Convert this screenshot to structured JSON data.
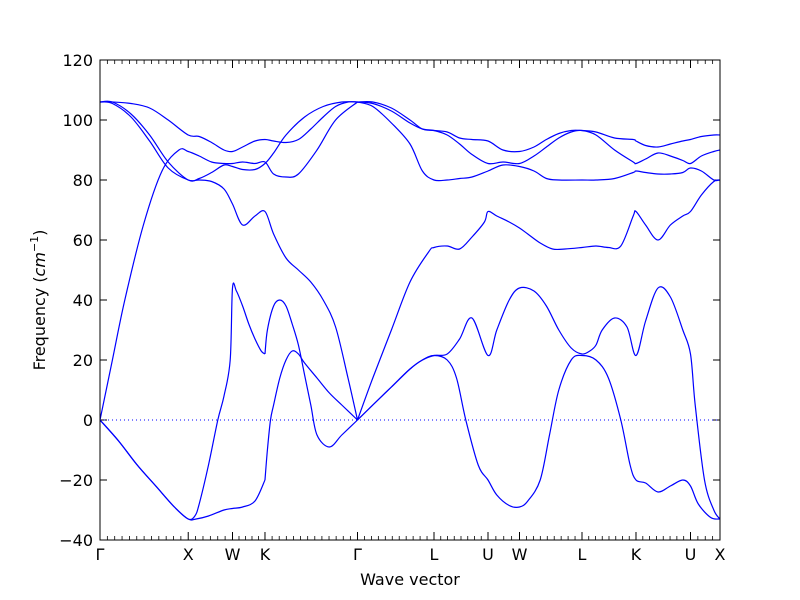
{
  "chart_data": {
    "type": "line",
    "xlabel": "Wave vector",
    "ylabel_prefix": "Frequency (",
    "ylabel_unit_base": "cm",
    "ylabel_unit_exp": "−1",
    "ylabel_suffix": ")",
    "ylim": [
      -40,
      120
    ],
    "xlim": [
      0,
      1
    ],
    "y_ticks": [
      {
        "value": -40,
        "label": "−40"
      },
      {
        "value": -20,
        "label": "−20"
      },
      {
        "value": 0,
        "label": "0"
      },
      {
        "value": 20,
        "label": "20"
      },
      {
        "value": 40,
        "label": "40"
      },
      {
        "value": 60,
        "label": "60"
      },
      {
        "value": 80,
        "label": "80"
      },
      {
        "value": 100,
        "label": "100"
      },
      {
        "value": 120,
        "label": "120"
      }
    ],
    "k_points": [
      {
        "label": "Γ",
        "x": 0.0
      },
      {
        "label": "X",
        "x": 0.1423
      },
      {
        "label": "W",
        "x": 0.2137
      },
      {
        "label": "K",
        "x": 0.2661
      },
      {
        "label": "Γ",
        "x": 0.4153
      },
      {
        "label": "L",
        "x": 0.5387
      },
      {
        "label": "U",
        "x": 0.6258
      },
      {
        "label": "W",
        "x": 0.6766
      },
      {
        "label": "L",
        "x": 0.7774
      },
      {
        "label": "K",
        "x": 0.8645
      },
      {
        "label": "U",
        "x": 0.9524
      },
      {
        "label": "X",
        "x": 1.0
      }
    ],
    "zero_line": {
      "y": 0,
      "style": "dotted",
      "color": "#0000ff"
    },
    "line_color": "#0000ff",
    "series": [
      {
        "x": [
          0,
          0.02,
          0.05,
          0.08,
          0.11,
          0.1423,
          0.16,
          0.18,
          0.2,
          0.2137,
          0.23,
          0.25,
          0.2661,
          0.28,
          0.3,
          0.32,
          0.34,
          0.36,
          0.38,
          0.4,
          0.4153
        ],
        "y": [
          106,
          106,
          105.5,
          104,
          100,
          95,
          94.5,
          92.5,
          90,
          89.5,
          91,
          93,
          93.5,
          93,
          92.5,
          93.5,
          97,
          101,
          104.5,
          106,
          106
        ]
      },
      {
        "x": [
          0,
          0.02,
          0.05,
          0.08,
          0.11,
          0.1423,
          0.16,
          0.18,
          0.2,
          0.2137,
          0.23,
          0.25,
          0.2661,
          0.28,
          0.3,
          0.33,
          0.36,
          0.39,
          0.4153
        ],
        "y": [
          106,
          106,
          102,
          95,
          86,
          80,
          80.5,
          82.5,
          85,
          84.5,
          83.5,
          83.5,
          85.5,
          89,
          95,
          101,
          104.5,
          106,
          106
        ]
      },
      {
        "x": [
          0,
          0.02,
          0.05,
          0.08,
          0.11,
          0.1423,
          0.16,
          0.18,
          0.2,
          0.2137,
          0.23,
          0.25,
          0.2661,
          0.28,
          0.3,
          0.32,
          0.34,
          0.36,
          0.38,
          0.4,
          0.4153
        ],
        "y": [
          106,
          105.5,
          101,
          93,
          84,
          80,
          80,
          79.5,
          77,
          72,
          65,
          68,
          69.5,
          62,
          54,
          50,
          46,
          40,
          31,
          14,
          0
        ]
      },
      {
        "x": [
          0,
          0.02,
          0.04,
          0.07,
          0.1,
          0.1273,
          0.1423,
          0.16,
          0.18,
          0.2,
          0.2137,
          0.23,
          0.25,
          0.2661,
          0.28,
          0.3,
          0.32,
          0.35,
          0.38,
          0.4153
        ],
        "y": [
          0,
          20,
          40,
          65,
          83,
          90,
          89.5,
          88,
          86,
          85.5,
          85.5,
          86,
          85.5,
          86,
          82,
          81,
          82,
          90,
          100,
          106
        ]
      },
      {
        "x": [
          0,
          0.03,
          0.06,
          0.09,
          0.12,
          0.1423,
          0.155,
          0.175,
          0.2,
          0.2137,
          0.23,
          0.25,
          0.2661
        ],
        "y": [
          0,
          -7,
          -15,
          -22,
          -29,
          -33,
          -33,
          -32,
          -30,
          -29.5,
          -29,
          -27,
          -20
        ]
      },
      {
        "x": [
          0,
          0.03,
          0.06,
          0.09,
          0.12,
          0.1423,
          0.153,
          0.16,
          0.175,
          0.19,
          0.2,
          0.21,
          0.2137,
          0.22,
          0.23,
          0.24,
          0.25,
          0.26,
          0.2661
        ],
        "y": [
          0,
          -7,
          -15,
          -22,
          -29,
          -33,
          -32,
          -28,
          -15,
          0,
          8,
          20,
          44,
          43,
          38,
          32,
          27,
          23,
          22
        ]
      },
      {
        "x": [
          0.2661,
          0.27,
          0.28,
          0.29,
          0.3,
          0.31,
          0.32,
          0.33,
          0.34,
          0.35,
          0.37,
          0.39,
          0.4153
        ],
        "y": [
          22,
          30,
          38,
          40,
          38,
          32,
          25,
          15,
          5,
          -5,
          -9,
          -5,
          0
        ]
      },
      {
        "x": [
          0.2661,
          0.27,
          0.275,
          0.28,
          0.29,
          0.3,
          0.31,
          0.32,
          0.33,
          0.35,
          0.37,
          0.39,
          0.4153
        ],
        "y": [
          -20,
          -10,
          0,
          5,
          14,
          20,
          23,
          22,
          19,
          14,
          9,
          5,
          0
        ]
      },
      {
        "x": [
          0.4153,
          0.44,
          0.47,
          0.5,
          0.53,
          0.5387,
          0.56,
          0.58,
          0.6,
          0.62,
          0.6258,
          0.64,
          0.66,
          0.6766,
          0.69,
          0.71,
          0.73,
          0.75,
          0.7774,
          0.8,
          0.82,
          0.84,
          0.86,
          0.8645,
          0.88,
          0.9,
          0.92,
          0.94,
          0.9524,
          0.97,
          0.99,
          1.0
        ],
        "y": [
          0,
          14,
          30,
          46,
          56,
          57.5,
          58,
          57,
          61,
          66,
          69.5,
          68,
          66,
          64,
          62,
          59,
          57,
          57,
          57.5,
          58,
          57.5,
          58,
          68,
          69.5,
          65,
          60,
          65,
          68,
          69.5,
          75,
          79.5,
          80
        ]
      },
      {
        "x": [
          0.4153,
          0.44,
          0.47,
          0.5,
          0.52,
          0.5387,
          0.56,
          0.58,
          0.6,
          0.6258,
          0.65,
          0.6766,
          0.7,
          0.72,
          0.74,
          0.7774,
          0.8,
          0.83,
          0.86,
          0.8645,
          0.88,
          0.9,
          0.92,
          0.94,
          0.9524,
          0.97,
          0.99,
          1.0
        ],
        "y": [
          106,
          104.5,
          99,
          92,
          83,
          80,
          80,
          80.5,
          81,
          83,
          85,
          84.5,
          83,
          80.5,
          80,
          80,
          80,
          80.5,
          82.5,
          83,
          82.5,
          82,
          82,
          82.5,
          84,
          83,
          80,
          80
        ]
      },
      {
        "x": [
          0.4153,
          0.44,
          0.47,
          0.5,
          0.52,
          0.5387,
          0.56,
          0.58,
          0.6,
          0.6258,
          0.65,
          0.6766,
          0.7,
          0.72,
          0.74,
          0.76,
          0.7774,
          0.8,
          0.83,
          0.86,
          0.8645,
          0.88,
          0.9,
          0.92,
          0.94,
          0.9524,
          0.97,
          0.99,
          1.0
        ],
        "y": [
          106,
          106,
          104,
          100,
          97,
          96.5,
          96,
          94,
          93.5,
          93,
          90,
          89.5,
          91,
          93.5,
          95.5,
          96.5,
          96.5,
          96,
          94,
          93.5,
          93,
          91.5,
          91,
          92,
          93,
          93.5,
          94.5,
          95,
          95
        ]
      },
      {
        "x": [
          0.4153,
          0.44,
          0.47,
          0.5,
          0.52,
          0.5387,
          0.56,
          0.58,
          0.6,
          0.6258,
          0.65,
          0.6766,
          0.7,
          0.72,
          0.74,
          0.76,
          0.7774,
          0.8,
          0.83,
          0.86,
          0.8645,
          0.88,
          0.9,
          0.92,
          0.94,
          0.9524,
          0.97,
          0.99,
          1.0
        ],
        "y": [
          106,
          105.5,
          103,
          99,
          97,
          96.5,
          95,
          92,
          88.5,
          85.5,
          86,
          85.5,
          88,
          91,
          94,
          96,
          96.5,
          95,
          90,
          86,
          85.5,
          87,
          89,
          88,
          86.5,
          85.5,
          88,
          89.5,
          90
        ]
      },
      {
        "x": [
          0.4153,
          0.44,
          0.47,
          0.5,
          0.52,
          0.5387,
          0.56,
          0.58,
          0.6,
          0.6258,
          0.64,
          0.66,
          0.6766,
          0.7,
          0.72,
          0.74,
          0.76,
          0.7774,
          0.79,
          0.8,
          0.81,
          0.83,
          0.85,
          0.8645,
          0.88,
          0.9,
          0.92,
          0.94,
          0.9524,
          0.96,
          0.975,
          0.99,
          1.0
        ],
        "y": [
          0,
          5,
          11,
          17,
          20,
          21.5,
          22,
          27,
          34,
          21.5,
          30,
          40,
          44,
          43,
          38,
          30,
          24,
          22,
          23,
          25,
          30,
          34,
          31,
          21.5,
          33,
          44,
          41,
          30,
          22,
          5,
          -20,
          -30,
          -33
        ]
      },
      {
        "x": [
          0.4153,
          0.44,
          0.47,
          0.5,
          0.52,
          0.5387,
          0.56,
          0.575,
          0.59,
          0.61,
          0.6258,
          0.64,
          0.66,
          0.6766,
          0.69,
          0.71,
          0.725,
          0.74,
          0.76,
          0.7774,
          0.8,
          0.82,
          0.84,
          0.855,
          0.8645,
          0.88,
          0.9,
          0.92,
          0.94,
          0.9524,
          0.965,
          0.985,
          1.0
        ],
        "y": [
          0,
          5,
          11,
          17,
          20,
          21.5,
          20,
          14,
          0,
          -15,
          -20,
          -25,
          -28.5,
          -29,
          -27,
          -20,
          -5,
          10,
          20,
          21.5,
          20,
          14,
          0,
          -15,
          -20,
          -21,
          -24,
          -22,
          -20,
          -22,
          -28,
          -32.5,
          -33
        ]
      }
    ]
  }
}
